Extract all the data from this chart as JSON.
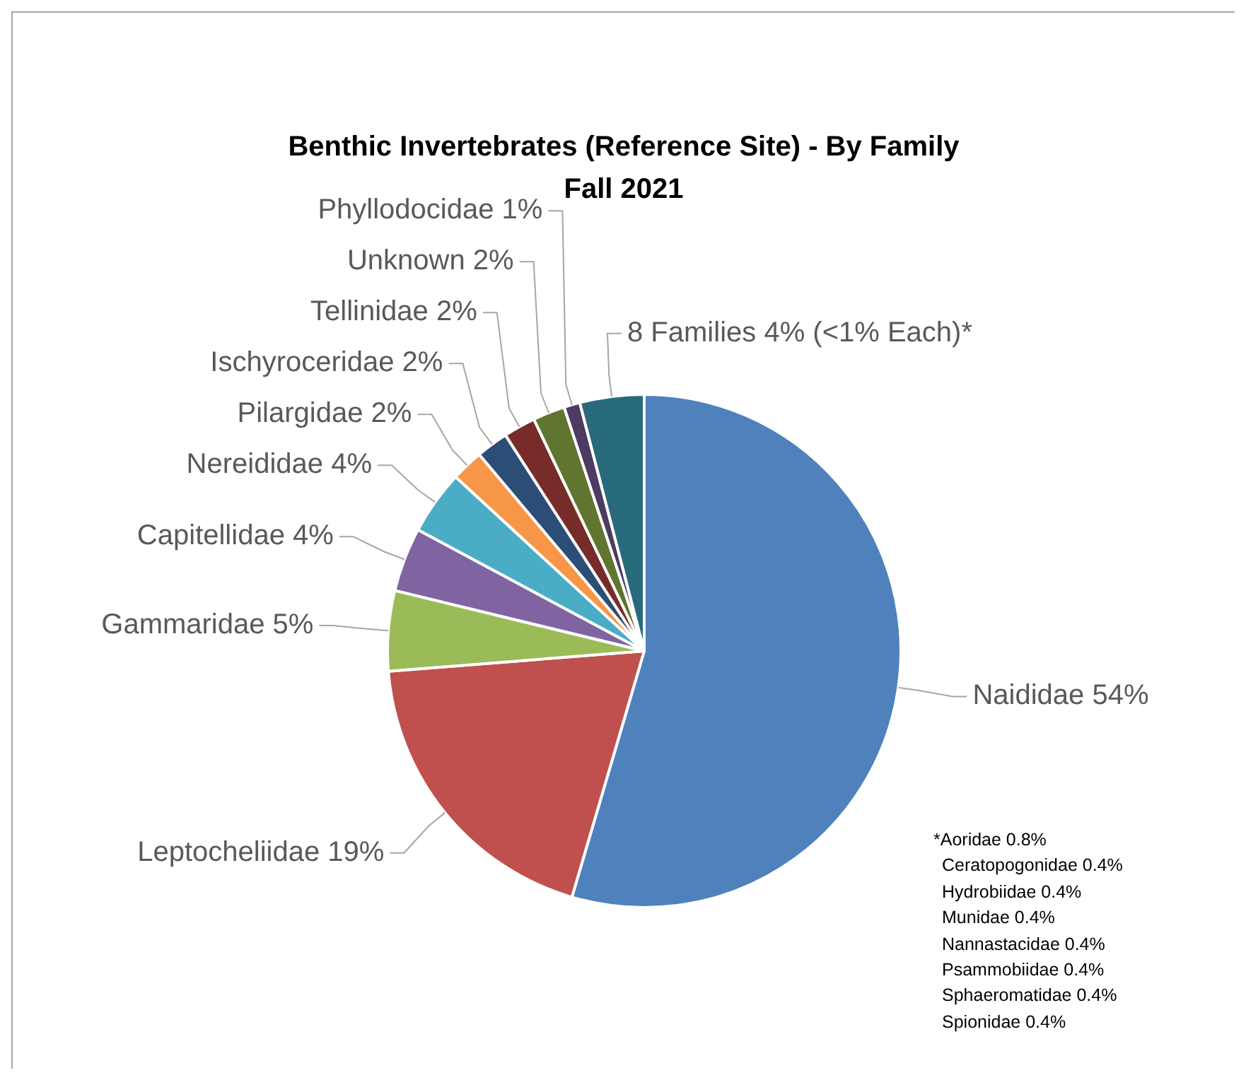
{
  "chart_data": {
    "type": "pie",
    "title": "Benthic Invertebrates (Reference Site) - By Family",
    "subtitle": "Fall 2021",
    "categories": [
      "Naididae",
      "Leptocheliidae",
      "Gammaridae",
      "Capitellidae",
      "Nereididae",
      "Pilargidae",
      "Ischyroceridae",
      "Tellinidae",
      "Unknown",
      "Phyllodocidae",
      "8 Families"
    ],
    "values": [
      54,
      19,
      5,
      4,
      4,
      2,
      2,
      2,
      2,
      1,
      4
    ],
    "value_labels": [
      "54%",
      "19%",
      "5%",
      "4%",
      "4%",
      "2%",
      "2%",
      "2%",
      "2%",
      "1%",
      "4% (<1% Each)*"
    ],
    "colors": [
      "#4f81bd",
      "#c0504d",
      "#9bbb59",
      "#8064a2",
      "#4bacc6",
      "#f79646",
      "#2c4d75",
      "#772c2a",
      "#5f7530",
      "#4d3b62",
      "#276a7c"
    ],
    "legend": false,
    "annotations": [
      "*Aoridae 0.8%",
      "Ceratopogonidae 0.4%",
      "Hydrobiidae 0.4%",
      "Munidae 0.4%",
      "Nannastacidae 0.4%",
      "Psammobiidae 0.4%",
      "Sphaeromatidae 0.4%",
      "Spionidae 0.4%"
    ]
  }
}
